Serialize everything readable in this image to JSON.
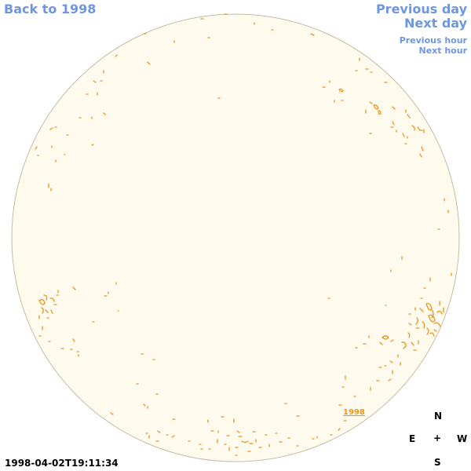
{
  "nav": {
    "back": "Back to 1998",
    "previous_day": "Previous day",
    "next_day": "Next day",
    "previous_hour": "Previous hour",
    "next_hour": "Next hour"
  },
  "timestamp": "1998-04-02T19:11:34",
  "year_label": "1998",
  "compass": {
    "north": "N",
    "east": "E",
    "center": "+",
    "west": "W",
    "south": "S"
  },
  "colors": {
    "disk_fill": "#fefaee",
    "disk_edge": "#c8bca4",
    "contour": "#e8961e",
    "link": "#6f96de"
  }
}
